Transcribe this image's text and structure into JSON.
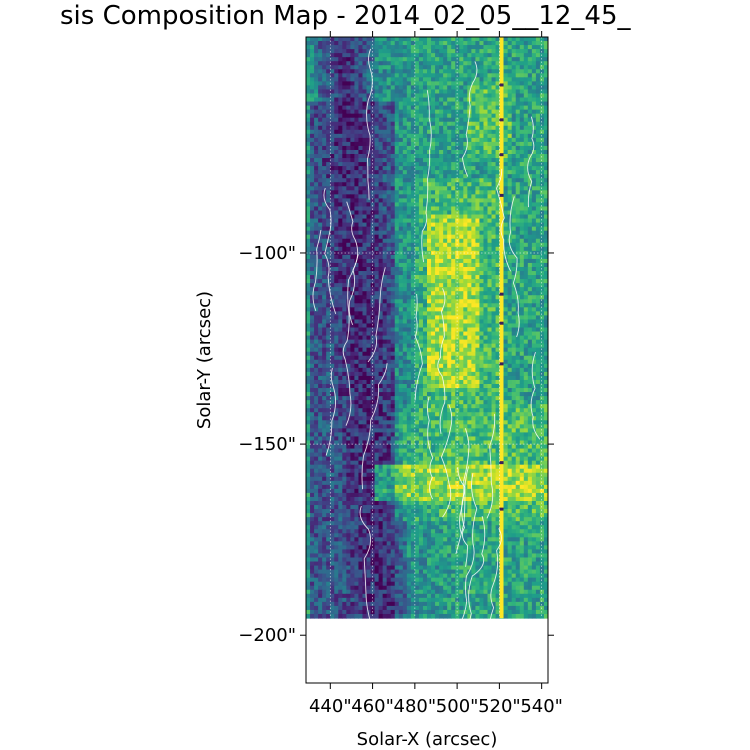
{
  "chart_data": {
    "type": "heatmap",
    "title": "sis Composition Map - 2014_02_05__12_45_",
    "xlabel": "Solar-X (arcsec)",
    "ylabel": "Solar-Y (arcsec)",
    "x_ticks": [
      {
        "value": 440,
        "label": "440\""
      },
      {
        "value": 460,
        "label": "460\""
      },
      {
        "value": 480,
        "label": "480\""
      },
      {
        "value": 500,
        "label": "500\""
      },
      {
        "value": 520,
        "label": "520\""
      },
      {
        "value": 540,
        "label": "540\""
      }
    ],
    "y_ticks": [
      {
        "value": -100,
        "label": "−100\""
      },
      {
        "value": -150,
        "label": "−150\""
      },
      {
        "value": -200,
        "label": "−200\""
      }
    ],
    "xlim": [
      428.5,
      543
    ],
    "ylim": [
      -212.5,
      -43.5
    ],
    "data_extent": {
      "x": [
        428.5,
        543
      ],
      "y": [
        -195.5,
        -43.5
      ]
    },
    "colormap": "viridis",
    "colors": {
      "low": "#440154",
      "mid": "#21918c",
      "high": "#fde725",
      "contour": "#ffffff",
      "grid": "#ffffff"
    },
    "grid": true,
    "bright_vertical_line_x": 521,
    "regions": [
      {
        "name": "low-composition band",
        "x": [
          430,
          470
        ],
        "y": [
          -60,
          -195
        ],
        "level": 0.1
      },
      {
        "name": "high-composition patch",
        "x": [
          485,
          510
        ],
        "y": [
          -90,
          -135
        ],
        "level": 0.9
      },
      {
        "name": "high-composition strip",
        "x": [
          460,
          543
        ],
        "y": [
          -155,
          -165
        ],
        "level": 0.85
      },
      {
        "name": "high-composition patch upper",
        "x": [
          505,
          525
        ],
        "y": [
          -55,
          -75
        ],
        "level": 0.8
      }
    ]
  }
}
